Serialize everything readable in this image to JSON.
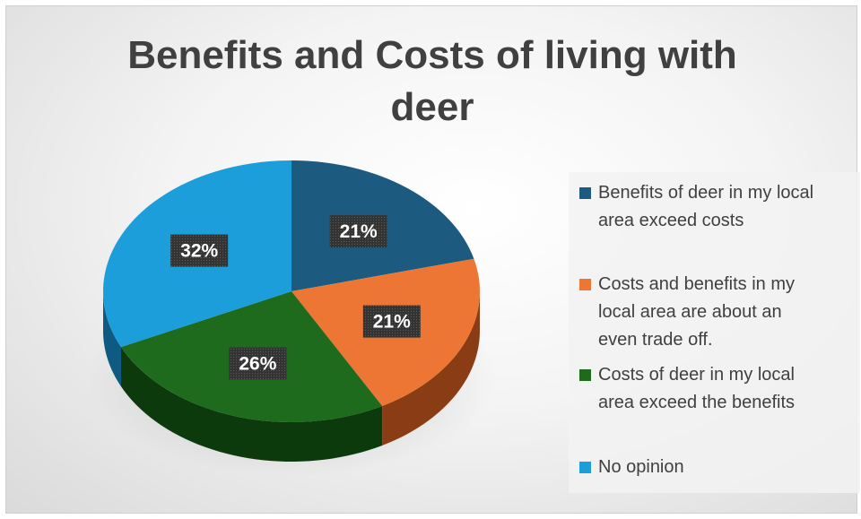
{
  "chart_data": {
    "type": "pie",
    "title": "Benefits and Costs of living with deer",
    "title_lines": [
      "Benefits and Costs of living with",
      "deer"
    ],
    "legend_position": "right",
    "slices": [
      {
        "label": "Benefits of deer in my local area exceed costs",
        "value": 21,
        "display": "21%",
        "color": "#1c5a80",
        "side_color": "#0f3650"
      },
      {
        "label": "Costs and benefits in my local area are about an even trade off.",
        "value": 21,
        "display": "21%",
        "color": "#ed7634",
        "side_color": "#8a3c14"
      },
      {
        "label": "Costs of deer in my local area exceed the benefits",
        "value": 26,
        "display": "26%",
        "color": "#1e6b1e",
        "side_color": "#0d3a0d"
      },
      {
        "label": "No opinion",
        "value": 32,
        "display": "32%",
        "color": "#1c9edb",
        "side_color": "#0e5a82"
      }
    ]
  },
  "legend": {
    "items": [
      {
        "lines": [
          "Benefits of deer in my local",
          "area exceed costs"
        ],
        "color": "#1c5a80"
      },
      {
        "lines": [
          "Costs and benefits in my",
          "local area are about an",
          "even trade off."
        ],
        "color": "#ed7634"
      },
      {
        "lines": [
          "Costs of deer in my local",
          "area exceed the benefits"
        ],
        "color": "#1e6b1e"
      },
      {
        "lines": [
          "No opinion"
        ],
        "color": "#1c9edb"
      }
    ]
  }
}
